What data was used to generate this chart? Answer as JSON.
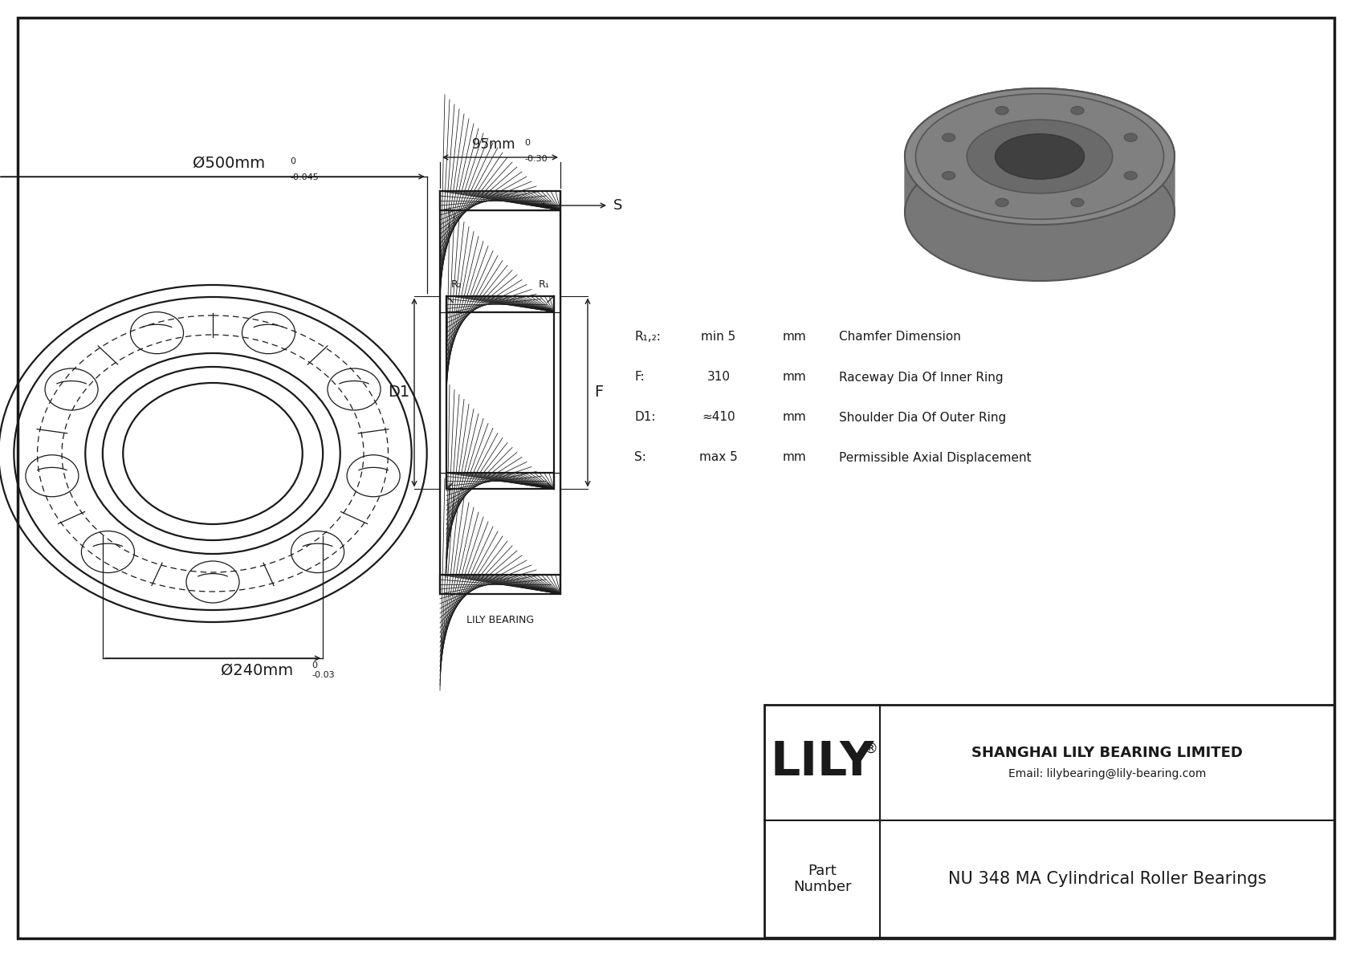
{
  "bg_color": "#ffffff",
  "lc": "#1a1a1a",
  "title": "NU 348 MA Cylindrical Roller Bearings",
  "company": "SHANGHAI LILY BEARING LIMITED",
  "email": "Email: lilybearing@lily-bearing.com",
  "logo": "LILY",
  "part_label": "Part\nNumber",
  "lily_bearing_label": "LILY BEARING",
  "dim_outer_main": "Ø500mm",
  "dim_outer_sup": "0",
  "dim_outer_sub": "-0.045",
  "dim_inner_main": "Ø240mm",
  "dim_inner_sup": "0",
  "dim_inner_sub": "-0.03",
  "dim_width_main": "95mm",
  "dim_width_sup": "0",
  "dim_width_sub": "-0.30",
  "label_S": "S",
  "label_D1": "D1",
  "label_F": "F",
  "label_R2": "R₂",
  "label_R1": "R₁",
  "spec_rows": [
    [
      "R₁,₂:",
      "min 5",
      "mm",
      "Chamfer Dimension"
    ],
    [
      "F:",
      "310",
      "mm",
      "Raceway Dia Of Inner Ring"
    ],
    [
      "D1:",
      "≈410",
      "mm",
      "Shoulder Dia Of Outer Ring"
    ],
    [
      "S:",
      "max 5",
      "mm",
      "Permissible Axial Displacement"
    ]
  ]
}
